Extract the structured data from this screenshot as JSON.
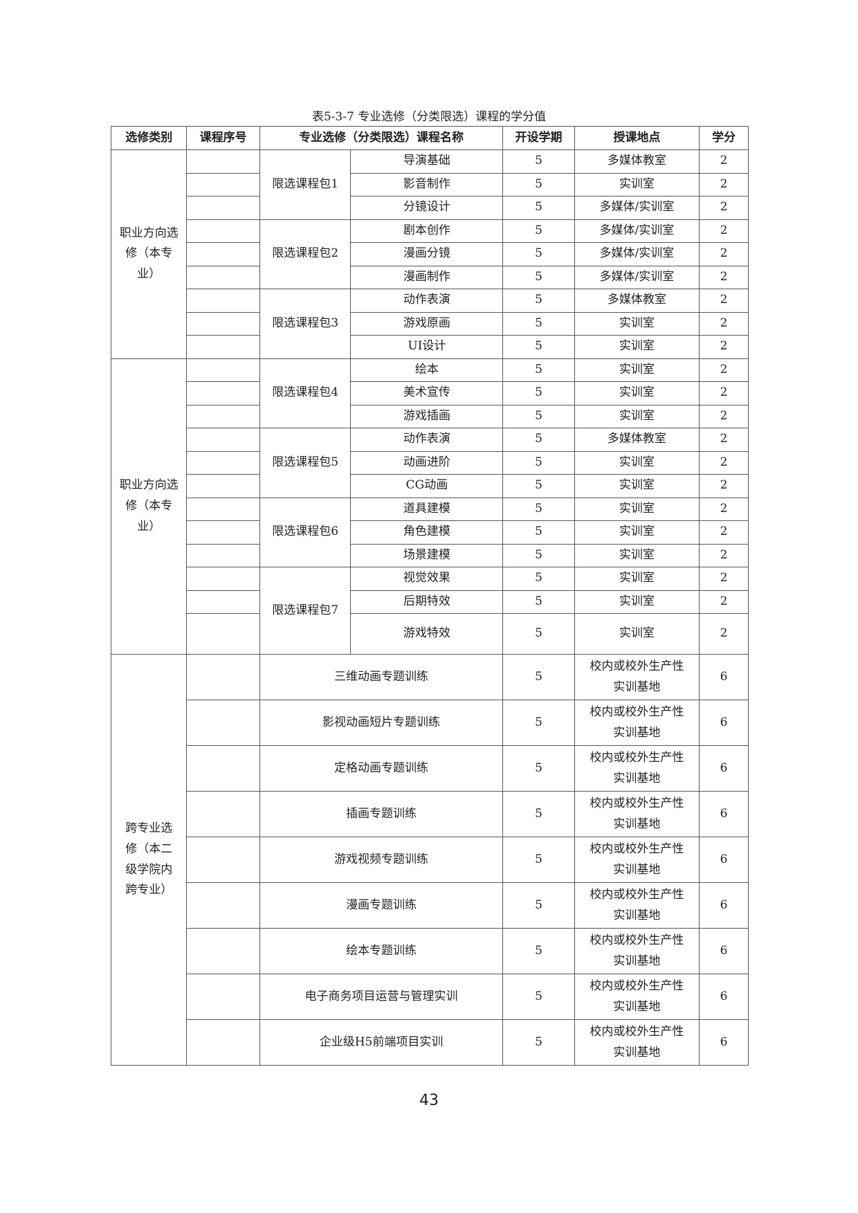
{
  "title": "表5-3-7 专业选修（分类限选）课程的学分值",
  "headers": [
    "选修类别",
    "课程序号",
    "专业选修（分类限选）课程名称",
    "开设学期",
    "授课地点",
    "学分"
  ],
  "groups": [
    {
      "category": "职业方向选修（本专业）",
      "packages": [
        {
          "name": "限选课程包1",
          "courses": [
            [
              "导演基础",
              "5",
              "多媒体教室",
              "2"
            ],
            [
              "影音制作",
              "5",
              "实训室",
              "2"
            ],
            [
              "分镜设计",
              "5",
              "多媒体/实训室",
              "2"
            ]
          ]
        },
        {
          "name": "限选课程包2",
          "courses": [
            [
              "剧本创作",
              "5",
              "多媒体/实训室",
              "2"
            ],
            [
              "漫画分镜",
              "5",
              "多媒体/实训室",
              "2"
            ],
            [
              "漫画制作",
              "5",
              "多媒体/实训室",
              "2"
            ]
          ]
        },
        {
          "name": "限选课程包3",
          "courses": [
            [
              "动作表演",
              "5",
              "多媒体教室",
              "2"
            ],
            [
              "游戏原画",
              "5",
              "实训室",
              "2"
            ],
            [
              "UI设计",
              "5",
              "实训室",
              "2"
            ]
          ]
        }
      ]
    },
    {
      "category": "职业方向选修（本专业）",
      "packages": [
        {
          "name": "限选课程包4",
          "courses": [
            [
              "绘本",
              "5",
              "实训室",
              "2"
            ],
            [
              "美术宣传",
              "5",
              "实训室",
              "2"
            ],
            [
              "游戏插画",
              "5",
              "实训室",
              "2"
            ]
          ]
        },
        {
          "name": "限选课程包5",
          "courses": [
            [
              "动作表演",
              "5",
              "多媒体教室",
              "2"
            ],
            [
              "动画进阶",
              "5",
              "实训室",
              "2"
            ],
            [
              "CG动画",
              "5",
              "实训室",
              "2"
            ]
          ]
        },
        {
          "name": "限选课程包6",
          "courses": [
            [
              "道具建模",
              "5",
              "实训室",
              "2"
            ],
            [
              "角色建模",
              "5",
              "实训室",
              "2"
            ],
            [
              "场景建模",
              "5",
              "实训室",
              "2"
            ]
          ]
        },
        {
          "name": "限选课程包7",
          "courses": [
            [
              "视觉效果",
              "5",
              "实训室",
              "2"
            ],
            [
              "后期特效",
              "5",
              "实训室",
              "2"
            ],
            [
              "游戏特效",
              "5",
              "实训室",
              "2"
            ]
          ]
        }
      ]
    }
  ],
  "cross": {
    "category": "跨专业选修（本二级学院内跨专业）",
    "courses": [
      [
        "三维动画专题训练",
        "5",
        "校内或校外生产性实训基地",
        "6"
      ],
      [
        "影视动画短片专题训练",
        "5",
        "校内或校外生产性实训基地",
        "6"
      ],
      [
        "定格动画专题训练",
        "5",
        "校内或校外生产性实训基地",
        "6"
      ],
      [
        "插画专题训练",
        "5",
        "校内或校外生产性实训基地",
        "6"
      ],
      [
        "游戏视频专题训练",
        "5",
        "校内或校外生产性实训基地",
        "6"
      ],
      [
        "漫画专题训练",
        "5",
        "校内或校外生产性实训基地",
        "6"
      ],
      [
        "绘本专题训练",
        "5",
        "校内或校外生产性实训基地",
        "6"
      ],
      [
        "电子商务项目运营与管理实训",
        "5",
        "校内或校外生产性实训基地",
        "6"
      ],
      [
        "企业级H5前端项目实训",
        "5",
        "校内或校外生产性实训基地",
        "6"
      ]
    ]
  },
  "page_number": "43"
}
